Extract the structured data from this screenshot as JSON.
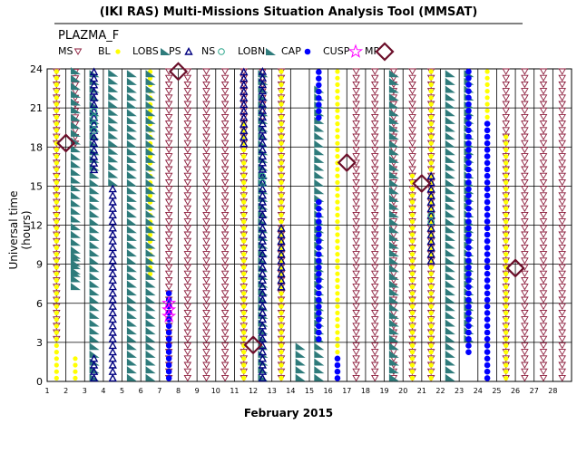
{
  "title": "(IKI RAS) Multi-Missions Situation Analysis Tool (MMSAT)",
  "subtitle": "PLAZMA_F",
  "chart_data": {
    "type": "scatter",
    "xlabel": "February 2015",
    "ylabel": "Universal time (hours)",
    "xlim": [
      1,
      29
    ],
    "ylim": [
      0,
      24
    ],
    "x_ticks": [
      "1",
      "2",
      "3",
      "4",
      "5",
      "6",
      "7",
      "8",
      "9",
      "10",
      "11",
      "12",
      "13",
      "14",
      "15",
      "16",
      "17",
      "18",
      "19",
      "20",
      "21",
      "22",
      "23",
      "24",
      "25",
      "26",
      "27",
      "28"
    ],
    "y_ticks": [
      "0",
      "3",
      "6",
      "9",
      "12",
      "15",
      "18",
      "21",
      "24"
    ],
    "grid": true,
    "legend_position": "top",
    "series": [
      {
        "name": "MS",
        "color": "#8b1a3a",
        "marker": "tri-down",
        "segments": [
          [
            1,
            3,
            24
          ],
          [
            2,
            18,
            24
          ],
          [
            7,
            0,
            24
          ],
          [
            8,
            0,
            24
          ],
          [
            9,
            0,
            24
          ],
          [
            10,
            0,
            24
          ],
          [
            11,
            0,
            24
          ],
          [
            12,
            20,
            24
          ],
          [
            13,
            0,
            24
          ],
          [
            17,
            0,
            24
          ],
          [
            18,
            0,
            24
          ],
          [
            19,
            0,
            24
          ],
          [
            20,
            0,
            24
          ],
          [
            21,
            0,
            24
          ],
          [
            25,
            0,
            24
          ],
          [
            26,
            0,
            24
          ],
          [
            27,
            0,
            24
          ],
          [
            28,
            0,
            24
          ]
        ]
      },
      {
        "name": "BL",
        "color": "#ffff00",
        "marker": "circle",
        "segments": [
          [
            1,
            0,
            24
          ],
          [
            2,
            0,
            2
          ],
          [
            6,
            8,
            24
          ],
          [
            11,
            0,
            20
          ],
          [
            13,
            0,
            24
          ],
          [
            16,
            0,
            24
          ],
          [
            20,
            0,
            16
          ],
          [
            21,
            0,
            24
          ],
          [
            24,
            0,
            24
          ],
          [
            25,
            0,
            19
          ]
        ]
      },
      {
        "name": "LOBS",
        "color": "#2e7b7b",
        "marker": "tri-stripe",
        "segments": [
          [
            2,
            8,
            24
          ],
          [
            3,
            0,
            24
          ],
          [
            4,
            15,
            24
          ],
          [
            5,
            0,
            24
          ],
          [
            6,
            0,
            24
          ],
          [
            12,
            0,
            24
          ],
          [
            15,
            0,
            23
          ],
          [
            19,
            0,
            24
          ],
          [
            22,
            0,
            24
          ],
          [
            23,
            3,
            24
          ]
        ]
      },
      {
        "name": "PS",
        "color": "#000080",
        "marker": "tri-up",
        "segments": [
          [
            3,
            16,
            24
          ],
          [
            3,
            0,
            2
          ],
          [
            4,
            0,
            15
          ],
          [
            11,
            18,
            24
          ],
          [
            12,
            0,
            24
          ],
          [
            13,
            7,
            12
          ],
          [
            21,
            9,
            16
          ]
        ]
      },
      {
        "name": "NS",
        "color": "#2aa58a",
        "marker": "circle-open",
        "segments": [
          [
            3,
            19,
            21
          ],
          [
            12,
            15,
            16
          ],
          [
            21,
            12,
            13
          ]
        ]
      },
      {
        "name": "LOBN",
        "color": "#2e7b7b",
        "marker": "tri-stripe",
        "segments": [
          [
            2,
            7,
            10
          ],
          [
            14,
            0,
            3
          ]
        ]
      },
      {
        "name": "CAP",
        "color": "#0000ff",
        "marker": "dot",
        "segments": [
          [
            7,
            0,
            7
          ],
          [
            15,
            3,
            14
          ],
          [
            15,
            20,
            24
          ],
          [
            16,
            0,
            2
          ],
          [
            23,
            2,
            24
          ],
          [
            24,
            0,
            20
          ]
        ]
      },
      {
        "name": "CUSP",
        "color": "#ff00ff",
        "marker": "star",
        "points": [
          [
            7,
            6
          ],
          [
            7,
            5.5
          ],
          [
            7,
            5
          ]
        ]
      },
      {
        "name": "MP",
        "color": "#6b0f2a",
        "marker": "diamond",
        "points": [
          [
            1.5,
            18.3
          ],
          [
            7.5,
            23.8
          ],
          [
            11.5,
            2.8
          ],
          [
            16.5,
            16.8
          ],
          [
            20.5,
            15.2
          ],
          [
            25.5,
            8.7
          ]
        ]
      }
    ]
  }
}
